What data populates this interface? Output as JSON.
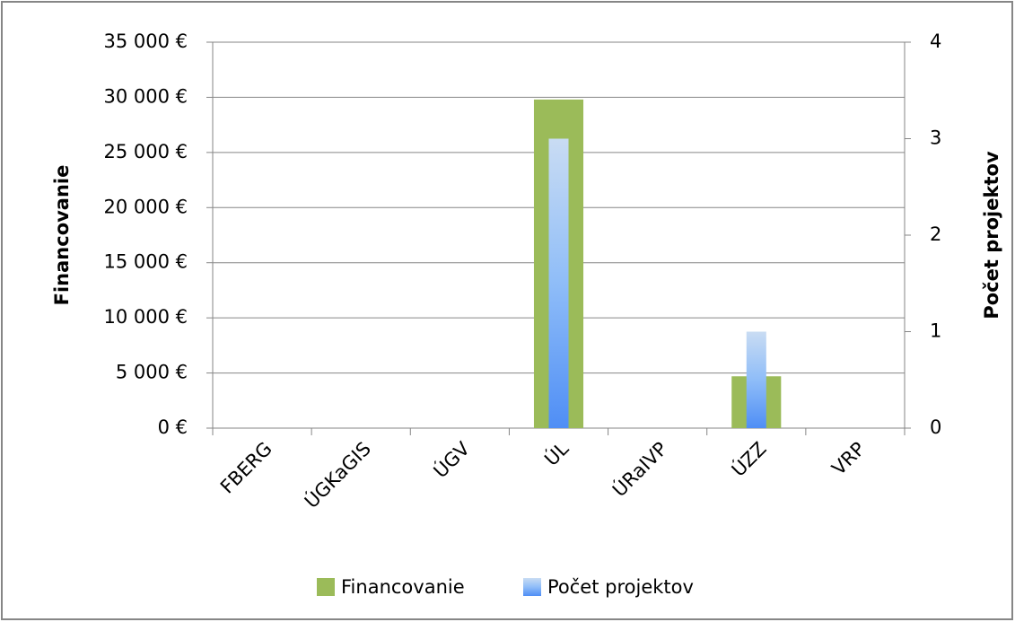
{
  "chart_data": {
    "type": "bar",
    "categories": [
      "FBERG",
      "ÚGKaGIS",
      "ÚGV",
      "ÚL",
      "ÚRaIVP",
      "ÚZZ",
      "VRP"
    ],
    "series": [
      {
        "name": "Financovanie",
        "color": "#9bbb59",
        "values": [
          0,
          0,
          0,
          29800,
          0,
          4700,
          0
        ]
      },
      {
        "name": "Počet projektov",
        "color": "#5b9bf5",
        "axis": "y2",
        "values": [
          0,
          0,
          0,
          3,
          0,
          1,
          0
        ]
      }
    ],
    "ylabel": "Financovanie",
    "y2label": "Počet projektov",
    "ylim": [
      0,
      35000
    ],
    "yticks": [
      {
        "value": 0,
        "label": "0 €"
      },
      {
        "value": 5000,
        "label": "5 000 €"
      },
      {
        "value": 10000,
        "label": "10 000 €"
      },
      {
        "value": 15000,
        "label": "15 000 €"
      },
      {
        "value": 20000,
        "label": "20 000 €"
      },
      {
        "value": 25000,
        "label": "25 000 €"
      },
      {
        "value": 30000,
        "label": "30 000 €"
      },
      {
        "value": 35000,
        "label": "35 000 €"
      }
    ],
    "y2lim": [
      0,
      4
    ],
    "y2ticks": [
      0,
      1,
      2,
      3,
      4
    ],
    "grid": true,
    "legend": "bottom"
  }
}
